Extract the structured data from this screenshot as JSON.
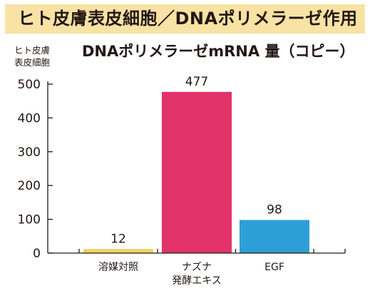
{
  "header": {
    "banner_title": "ヒト皮膚表皮細胞／DNAポリメラーゼ作用"
  },
  "chart_data": {
    "type": "bar",
    "title": "DNAポリメラーゼmRNA 量（コピー）",
    "ylabel": [
      "ヒト皮膚",
      "表皮細胞"
    ],
    "xlabel": "",
    "ylim": [
      0,
      500
    ],
    "yticks": [
      0,
      100,
      200,
      300,
      400,
      500
    ],
    "grid": false,
    "categories": [
      {
        "lines": [
          "溶媒対照"
        ]
      },
      {
        "lines": [
          "ナズナ",
          "発酵エキス"
        ]
      },
      {
        "lines": [
          "EGF"
        ]
      }
    ],
    "values": [
      12,
      477,
      98
    ],
    "data_labels": [
      "12",
      "477",
      "98"
    ],
    "colors": [
      "#f3d35a",
      "#e2336a",
      "#2d9fd6"
    ],
    "axis_color": "#231815"
  }
}
